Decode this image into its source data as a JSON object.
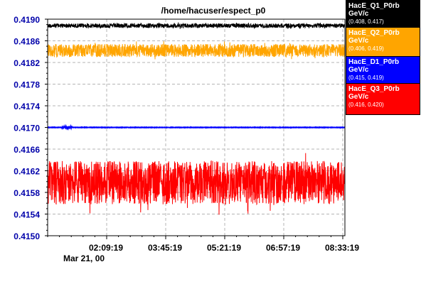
{
  "chart_data": {
    "type": "line",
    "title": "/home/hacuser/espect_p0",
    "y_ticks": [
      "0.4150",
      "0.4154",
      "0.4158",
      "0.4162",
      "0.4166",
      "0.4170",
      "0.4174",
      "0.4178",
      "0.4182",
      "0.4186",
      "0.4190"
    ],
    "ylim": [
      0.415,
      0.419
    ],
    "x_ticks": [
      "02:09:19",
      "03:45:19",
      "05:21:19",
      "06:57:19",
      "08:33:19"
    ],
    "x_date": "Mar 21, 00",
    "grid": true,
    "legend_position": "right",
    "series": [
      {
        "name": "HacE_Q1_P0rb",
        "unit": "GeV/c",
        "range": "(0.408, 0.417)",
        "color": "#000000",
        "center": 0.41888,
        "amplitude": 4e-05,
        "noise": "dense"
      },
      {
        "name": "HacE_Q2_P0rb",
        "unit": "GeV/c",
        "range": "(0.406, 0.419)",
        "color": "#ffa500",
        "center": 0.41842,
        "amplitude": 0.00012,
        "noise": "dense"
      },
      {
        "name": "HacE_D1_P0rb",
        "unit": "GeV/c",
        "range": "(0.415, 0.419)",
        "color": "#0000ff",
        "center": 0.417,
        "amplitude": 3e-06,
        "noise": "flat"
      },
      {
        "name": "HacE_Q3_P0rb",
        "unit": "GeV/c",
        "range": "(0.416, 0.420)",
        "color": "#ff0000",
        "center": 0.41598,
        "amplitude": 0.0004,
        "noise": "dense"
      }
    ]
  }
}
